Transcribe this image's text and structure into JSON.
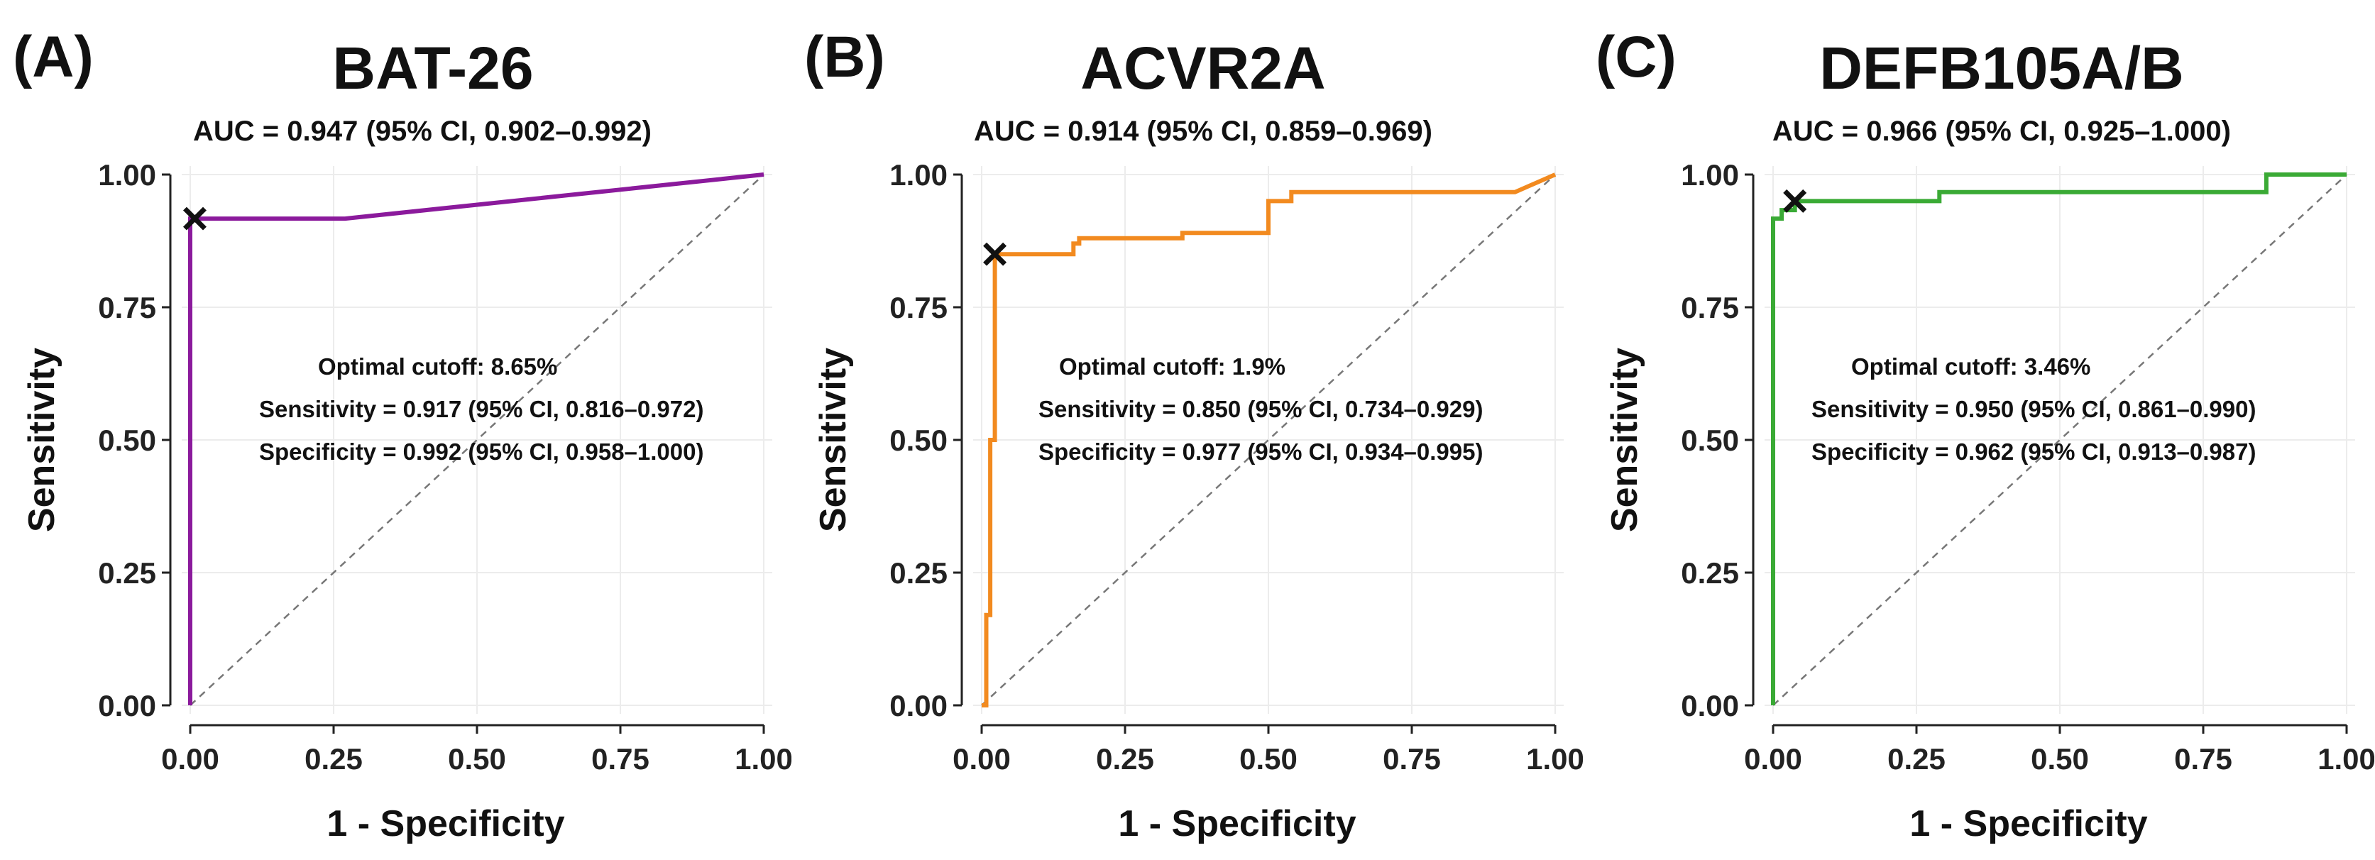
{
  "chart_data": [
    {
      "type": "line",
      "panel_label": "(A)",
      "title": "BAT-26",
      "subtitle": "AUC = 0.947 (95% CI, 0.902–0.992)",
      "xlabel": "1 - Specificity",
      "ylabel": "Sensitivity",
      "xlim": [
        0,
        1
      ],
      "ylim": [
        0,
        1
      ],
      "xticks": [
        "0.00",
        "0.25",
        "0.50",
        "0.75",
        "1.00"
      ],
      "yticks": [
        "0.00",
        "0.25",
        "0.50",
        "0.75",
        "1.00"
      ],
      "grid": true,
      "color": "#8b1a9c",
      "series": [
        {
          "x": [
            0,
            0,
            0.008,
            0.27,
            1.0
          ],
          "y": [
            0,
            0.917,
            0.917,
            0.917,
            1.0
          ]
        }
      ],
      "reference_line": {
        "x": [
          0,
          1
        ],
        "y": [
          0,
          1
        ]
      },
      "optimal_point": {
        "x": 0.008,
        "y": 0.917
      },
      "annotations": [
        "Optimal cutoff: 8.65%",
        "Sensitivity = 0.917 (95% CI, 0.816–0.972)",
        "Specificity = 0.992 (95% CI, 0.958–1.000)"
      ]
    },
    {
      "type": "line",
      "panel_label": "(B)",
      "title": "ACVR2A",
      "subtitle": "AUC = 0.914 (95% CI, 0.859–0.969)",
      "xlabel": "1 - Specificity",
      "ylabel": "Sensitivity",
      "xlim": [
        0,
        1
      ],
      "ylim": [
        0,
        1
      ],
      "xticks": [
        "0.00",
        "0.25",
        "0.50",
        "0.75",
        "1.00"
      ],
      "yticks": [
        "0.00",
        "0.25",
        "0.50",
        "0.75",
        "1.00"
      ],
      "grid": true,
      "color": "#f28a1f",
      "series": [
        {
          "x": [
            0,
            0.008,
            0.008,
            0.015,
            0.015,
            0.023,
            0.023,
            0.16,
            0.16,
            0.17,
            0.17,
            0.35,
            0.35,
            0.5,
            0.5,
            0.54,
            0.54,
            0.93,
            1.0
          ],
          "y": [
            0,
            0,
            0.17,
            0.17,
            0.5,
            0.5,
            0.85,
            0.85,
            0.87,
            0.87,
            0.88,
            0.88,
            0.89,
            0.89,
            0.95,
            0.95,
            0.967,
            0.967,
            1.0
          ]
        }
      ],
      "reference_line": {
        "x": [
          0,
          1
        ],
        "y": [
          0,
          1
        ]
      },
      "optimal_point": {
        "x": 0.023,
        "y": 0.85
      },
      "annotations": [
        "Optimal cutoff: 1.9%",
        "Sensitivity = 0.850 (95% CI, 0.734–0.929)",
        "Specificity = 0.977 (95% CI, 0.934–0.995)"
      ]
    },
    {
      "type": "line",
      "panel_label": "(C)",
      "title": "DEFB105A/B",
      "subtitle": "AUC = 0.966 (95% CI, 0.925–1.000)",
      "xlabel": "1 - Specificity",
      "ylabel": "Sensitivity",
      "xlim": [
        0,
        1
      ],
      "ylim": [
        0,
        1
      ],
      "xticks": [
        "0.00",
        "0.25",
        "0.50",
        "0.75",
        "1.00"
      ],
      "yticks": [
        "0.00",
        "0.25",
        "0.50",
        "0.75",
        "1.00"
      ],
      "grid": true,
      "color": "#3aaa35",
      "series": [
        {
          "x": [
            0,
            0,
            0.015,
            0.015,
            0.038,
            0.038,
            0.29,
            0.29,
            0.86,
            0.86,
            1.0
          ],
          "y": [
            0,
            0.917,
            0.917,
            0.933,
            0.933,
            0.95,
            0.95,
            0.967,
            0.967,
            1.0,
            1.0
          ]
        }
      ],
      "reference_line": {
        "x": [
          0,
          1
        ],
        "y": [
          0,
          1
        ]
      },
      "optimal_point": {
        "x": 0.038,
        "y": 0.95
      },
      "annotations": [
        "Optimal cutoff: 3.46%",
        "Sensitivity = 0.950 (95% CI, 0.861–0.990)",
        "Specificity = 0.962 (95% CI, 0.913–0.987)"
      ]
    }
  ]
}
